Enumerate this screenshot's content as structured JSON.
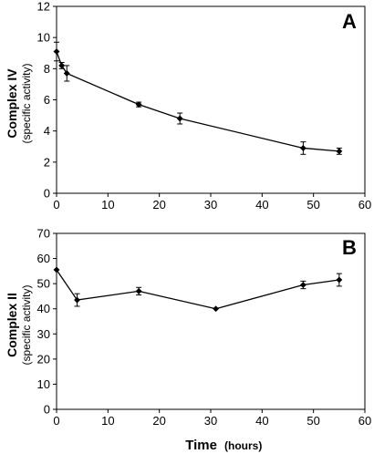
{
  "x_label": "Time",
  "x_unit": "(hours)",
  "chart_data": [
    {
      "type": "line",
      "panel_label": "A",
      "ylabel": "Complex IV",
      "ylabel_sub": "(specific activity)",
      "xlim": [
        0,
        60
      ],
      "ylim": [
        0,
        12
      ],
      "x_ticks": [
        0,
        10,
        20,
        30,
        40,
        50,
        60
      ],
      "y_ticks": [
        0,
        2,
        4,
        6,
        8,
        10,
        12
      ],
      "grid": false,
      "series": [
        {
          "x": [
            0,
            1,
            2,
            16,
            24,
            48,
            55
          ],
          "y": [
            9.1,
            8.2,
            7.7,
            5.7,
            4.8,
            2.9,
            2.7
          ],
          "error": [
            0.6,
            0.2,
            0.5,
            0.15,
            0.35,
            0.4,
            0.2
          ]
        }
      ]
    },
    {
      "type": "line",
      "panel_label": "B",
      "ylabel": "Complex II",
      "ylabel_sub": "(specific activity)",
      "xlim": [
        0,
        60
      ],
      "ylim": [
        0,
        70
      ],
      "x_ticks": [
        0,
        10,
        20,
        30,
        40,
        50,
        60
      ],
      "y_ticks": [
        0,
        10,
        20,
        30,
        40,
        50,
        60,
        70
      ],
      "grid": false,
      "series": [
        {
          "x": [
            0,
            4,
            16,
            31,
            48,
            55
          ],
          "y": [
            55.5,
            43.5,
            47,
            40,
            49.5,
            51.5
          ],
          "error": [
            0,
            2.5,
            1.5,
            0,
            1.5,
            2.5
          ]
        }
      ]
    }
  ]
}
